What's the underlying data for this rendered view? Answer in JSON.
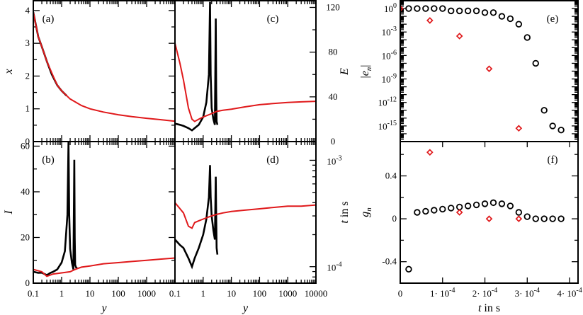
{
  "colors": {
    "black": "#000000",
    "red": "#e0191b"
  },
  "chart_data": [
    {
      "id": "a",
      "type": "line",
      "panel_label": "(a)",
      "ylabel": "x",
      "xscale": "log",
      "xlim": [
        0.1,
        10000
      ],
      "ylim": [
        0,
        4.3
      ],
      "yticks": [
        0,
        1,
        2,
        3,
        4
      ],
      "series": [
        {
          "color": "black",
          "x": [
            0.1,
            0.15,
            0.2,
            0.3,
            0.45,
            0.7,
            1,
            1.5
          ],
          "y": [
            3.95,
            3.2,
            2.9,
            2.45,
            2.05,
            1.72,
            1.55,
            1.4
          ]
        },
        {
          "color": "red",
          "x": [
            0.1,
            0.15,
            0.2,
            0.3,
            0.5,
            0.7,
            1,
            2,
            5,
            10,
            30,
            100,
            300,
            1000,
            3000,
            10000
          ],
          "y": [
            3.95,
            3.2,
            2.9,
            2.45,
            2.0,
            1.72,
            1.55,
            1.3,
            1.1,
            1.0,
            0.9,
            0.82,
            0.76,
            0.71,
            0.67,
            0.62
          ]
        }
      ]
    },
    {
      "id": "b",
      "type": "line",
      "panel_label": "(b)",
      "ylabel": "I",
      "xlabel": "y",
      "xscale": "log",
      "xlim": [
        0.1,
        10000
      ],
      "ylim": [
        0,
        62
      ],
      "xticks": [
        0.1,
        1,
        10,
        100,
        1000
      ],
      "xticklabels": [
        "0.1",
        "1",
        "10",
        "100",
        "1000"
      ],
      "yticks": [
        0,
        20,
        40,
        60
      ],
      "series": [
        {
          "color": "black",
          "x": [
            0.1,
            0.15,
            0.2,
            0.3,
            0.4,
            0.5,
            0.7,
            1.0,
            1.3,
            1.6,
            1.75,
            1.85,
            2.0,
            2.3,
            2.6,
            2.8,
            2.9,
            3.0,
            3.2,
            3.5
          ],
          "y": [
            5,
            4.5,
            4.6,
            3.5,
            4.5,
            5,
            6,
            9,
            14,
            30,
            62,
            30,
            15,
            9,
            6,
            54,
            20,
            8,
            7,
            6.5
          ]
        },
        {
          "color": "red",
          "x": [
            0.1,
            0.2,
            0.3,
            0.5,
            1,
            2,
            3,
            5,
            10,
            30,
            100,
            300,
            1000,
            3000,
            10000
          ],
          "y": [
            6,
            5,
            3,
            4,
            4.5,
            5,
            6,
            7,
            7.5,
            8.5,
            9,
            9.5,
            10,
            10.5,
            11
          ]
        }
      ]
    },
    {
      "id": "c",
      "type": "line",
      "panel_label": "(c)",
      "ylabel": "E",
      "xscale": "log",
      "xlim": [
        0.1,
        10000
      ],
      "ylim": [
        0,
        126
      ],
      "yticks": [
        0,
        40,
        80,
        120
      ],
      "series": [
        {
          "color": "black",
          "x": [
            0.1,
            0.15,
            0.2,
            0.3,
            0.4,
            0.5,
            0.7,
            1.0,
            1.3,
            1.6,
            1.75,
            1.85,
            2.0,
            2.3,
            2.6,
            2.8,
            2.9,
            3.0,
            3.2
          ],
          "y": [
            16,
            15,
            14,
            12,
            10,
            12,
            15,
            22,
            35,
            60,
            125,
            60,
            30,
            20,
            15,
            110,
            45,
            18,
            15
          ]
        },
        {
          "color": "red",
          "x": [
            0.1,
            0.15,
            0.2,
            0.3,
            0.4,
            0.5,
            0.7,
            1,
            2,
            3,
            5,
            10,
            30,
            100,
            300,
            1000,
            3000,
            10000
          ],
          "y": [
            88,
            70,
            55,
            30,
            20,
            18,
            20,
            22,
            25,
            27,
            28,
            29,
            31,
            33,
            34,
            35,
            35.5,
            36
          ]
        }
      ]
    },
    {
      "id": "d",
      "type": "line",
      "panel_label": "(d)",
      "ylabel": "t in s",
      "xlabel": "y",
      "xscale": "log",
      "yscale": "log",
      "xlim": [
        0.1,
        10000
      ],
      "ylim": [
        7e-05,
        0.0015
      ],
      "xticks": [
        0.1,
        1,
        10,
        100,
        1000,
        10000
      ],
      "xticklabels": [
        "0.1",
        "1",
        "10",
        "100",
        "1000",
        "10000"
      ],
      "yticklabels": [
        "10^-3",
        "10^-4"
      ],
      "series": [
        {
          "color": "black",
          "x": [
            0.1,
            0.15,
            0.2,
            0.3,
            0.4,
            0.5,
            0.7,
            1.0,
            1.3,
            1.6,
            1.75,
            1.85,
            2.0,
            2.3,
            2.6,
            2.8,
            2.9,
            3.0,
            3.2
          ],
          "y": [
            0.00018,
            0.00016,
            0.00015,
            0.00012,
            0.0001,
            0.00012,
            0.00015,
            0.0002,
            0.00028,
            0.00045,
            0.0009,
            0.00045,
            0.0003,
            0.00022,
            0.00018,
            0.0007,
            0.0003,
            0.00015,
            0.00013
          ]
        },
        {
          "color": "red",
          "x": [
            0.1,
            0.2,
            0.3,
            0.4,
            0.5,
            0.7,
            1,
            2,
            3,
            5,
            10,
            30,
            100,
            300,
            1000,
            3000,
            10000
          ],
          "y": [
            0.0004,
            0.00032,
            0.00024,
            0.00023,
            0.00026,
            0.00027,
            0.00028,
            0.0003,
            0.00031,
            0.00032,
            0.00033,
            0.00034,
            0.00035,
            0.00036,
            0.00037,
            0.00037,
            0.00038
          ]
        }
      ]
    },
    {
      "id": "e",
      "type": "scatter",
      "panel_label": "(e)",
      "ylabel": "E |e_n|",
      "yscale": "log",
      "xlim": [
        0,
        0.00042
      ],
      "ylim": [
        1e-17,
        10
      ],
      "yticklabels": [
        "10^0",
        "10^-3",
        "10^-6",
        "10^-9",
        "10^-12",
        "10^-15"
      ],
      "series": [
        {
          "color": "black",
          "marker": "circle",
          "x": [
            2e-05,
            4e-05,
            6e-05,
            8e-05,
            0.0001,
            0.00012,
            0.00014,
            0.00016,
            0.00018,
            0.0002,
            0.00022,
            0.00024,
            0.00026,
            0.00028,
            0.0003,
            0.00032,
            0.00034,
            0.00036,
            0.00038
          ],
          "y": [
            1,
            1,
            1,
            1,
            1,
            0.5,
            0.5,
            0.5,
            0.5,
            0.3,
            0.3,
            0.1,
            0.05,
            0.01,
            0.0002,
            1e-07,
            1e-13,
            1e-15,
            3e-16
          ]
        },
        {
          "color": "red",
          "marker": "diamond",
          "x": [
            0,
            7e-05,
            0.00014,
            0.00021,
            0.00028
          ],
          "y": [
            1,
            0.03,
            0.0003,
            2e-08,
            5e-16
          ]
        }
      ]
    },
    {
      "id": "f",
      "type": "scatter",
      "panel_label": "(f)",
      "ylabel": "g_n",
      "xlabel": "t in s",
      "xlim": [
        0,
        0.00042
      ],
      "ylim": [
        -0.6,
        0.72
      ],
      "xticks": [
        0,
        0.0001,
        0.0002,
        0.0003,
        0.0004
      ],
      "xticklabels": [
        "0",
        "1· 10^-4",
        "2· 10^-4",
        "3· 10^-4",
        "4· 10^-4"
      ],
      "yticks": [
        -0.4,
        0,
        0.4
      ],
      "yticklabels": [
        "-0.4",
        "0",
        "0.4"
      ],
      "series": [
        {
          "color": "black",
          "marker": "circle",
          "x": [
            2e-05,
            4e-05,
            6e-05,
            8e-05,
            0.0001,
            0.00012,
            0.00014,
            0.00016,
            0.00018,
            0.0002,
            0.00022,
            0.00024,
            0.00026,
            0.00028,
            0.0003,
            0.00032,
            0.00034,
            0.00036,
            0.00038
          ],
          "y": [
            -0.47,
            0.06,
            0.07,
            0.08,
            0.09,
            0.1,
            0.11,
            0.12,
            0.13,
            0.14,
            0.15,
            0.14,
            0.12,
            0.06,
            0.02,
            0.0,
            0.0,
            0.0,
            0.0
          ]
        },
        {
          "color": "red",
          "marker": "diamond",
          "x": [
            7e-05,
            0.00014,
            0.00021,
            0.00028
          ],
          "y": [
            0.62,
            0.06,
            0.0,
            0.0
          ]
        }
      ]
    }
  ]
}
